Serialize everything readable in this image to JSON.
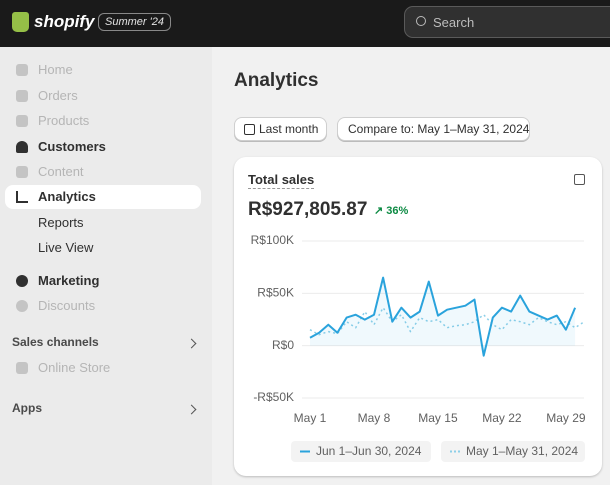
{
  "header": {
    "brand": "shopify",
    "badge": "Summer '24",
    "search": "Search"
  },
  "sidebar": {
    "items": [
      "Home",
      "Orders",
      "Products",
      "Customers",
      "Content",
      "Analytics",
      "Reports",
      "Live View",
      "Marketing",
      "Discounts"
    ],
    "sales_channels": {
      "title": "Sales channels",
      "items": [
        "Online Store"
      ]
    },
    "apps": {
      "title": "Apps"
    }
  },
  "main": {
    "title": "Analytics",
    "date_button": "Last month",
    "compare_button": "Compare to: May 1–May 31, 2024"
  },
  "card": {
    "total": "R$927,805.87",
    "change": "36%"
  },
  "chart_data": {
    "type": "line",
    "title": "Total sales",
    "categories": [
      "May 1",
      null,
      null,
      null,
      null,
      null,
      null,
      "May 8",
      null,
      null,
      null,
      null,
      null,
      null,
      "May 15",
      null,
      null,
      null,
      null,
      null,
      null,
      "May 22",
      null,
      null,
      null,
      null,
      null,
      null,
      "May 29",
      null,
      null
    ],
    "series": [
      {
        "name": "Jun 1–Jun 30, 2024",
        "color": "#2aa3dc",
        "style": "solid",
        "values": [
          7600,
          12400,
          20000,
          12400,
          26800,
          29600,
          24900,
          29600,
          65000,
          22900,
          36300,
          26800,
          32500,
          61200,
          28700,
          34400,
          36300,
          38200,
          44000,
          -9600,
          26800,
          36300,
          32500,
          47800,
          32500,
          28700,
          24900,
          28700,
          15300,
          36300,
          null
        ]
      },
      {
        "name": "May 1–May 31, 2024",
        "color": "#8ccfe8",
        "style": "dotted",
        "values": [
          15300,
          10500,
          13400,
          11500,
          22900,
          17200,
          32500,
          20000,
          36300,
          22900,
          29600,
          13400,
          26800,
          22900,
          24900,
          17200,
          19100,
          20000,
          22900,
          29600,
          20000,
          15300,
          24900,
          22900,
          20000,
          26800,
          22900,
          20000,
          22900,
          17200,
          22900
        ]
      }
    ],
    "ylim": [
      -50000,
      100000
    ],
    "yticks": [
      {
        "value": -50000,
        "label": "-R$50K"
      },
      {
        "value": 0,
        "label": "R$0"
      },
      {
        "value": 50000,
        "label": "R$50K"
      },
      {
        "value": 100000,
        "label": "R$100K"
      }
    ],
    "grid": true
  }
}
